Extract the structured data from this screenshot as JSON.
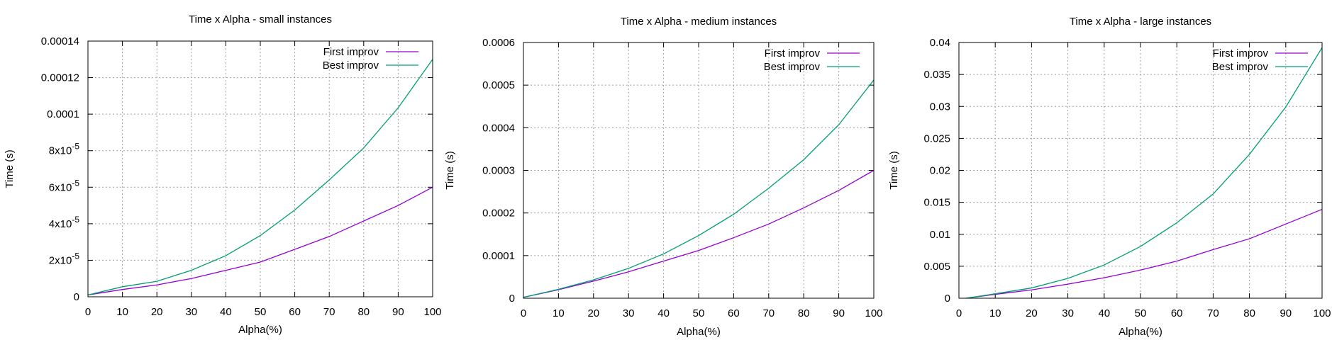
{
  "chart_data": [
    {
      "type": "line",
      "title": "Time x Alpha - small instances",
      "xlabel": "Alpha(%)",
      "ylabel": "Time (s)",
      "xlim": [
        0,
        100
      ],
      "ylim": [
        0,
        0.00014
      ],
      "x_ticks": [
        0,
        10,
        20,
        30,
        40,
        50,
        60,
        70,
        80,
        90,
        100
      ],
      "y_ticks": [
        {
          "value": 0,
          "mantissa": "0",
          "exp": ""
        },
        {
          "value": 2e-05,
          "mantissa": "2x10",
          "exp": "-5"
        },
        {
          "value": 4e-05,
          "mantissa": "4x10",
          "exp": "-5"
        },
        {
          "value": 6e-05,
          "mantissa": "6x10",
          "exp": "-5"
        },
        {
          "value": 8e-05,
          "mantissa": "8x10",
          "exp": "-5"
        },
        {
          "value": 0.0001,
          "mantissa": "0.0001",
          "exp": ""
        },
        {
          "value": 0.00012,
          "mantissa": "0.00012",
          "exp": ""
        },
        {
          "value": 0.00014,
          "mantissa": "0.00014",
          "exp": ""
        }
      ],
      "grid": true,
      "legend_position": "top-right",
      "x": [
        0,
        10,
        20,
        30,
        40,
        50,
        60,
        70,
        80,
        90,
        100
      ],
      "series": [
        {
          "name": "First improv",
          "color": "#9400d3",
          "values": [
            1e-06,
            4e-06,
            6.5e-06,
            1e-05,
            1.45e-05,
            1.9e-05,
            2.6e-05,
            3.3e-05,
            4.15e-05,
            5e-05,
            6e-05
          ]
        },
        {
          "name": "Best improv",
          "color": "#009e73",
          "values": [
            1e-06,
            5.5e-06,
            8.5e-06,
            1.45e-05,
            2.25e-05,
            3.35e-05,
            4.75e-05,
            6.4e-05,
            8.15e-05,
            0.0001035,
            0.00013
          ]
        }
      ]
    },
    {
      "type": "line",
      "title": "Time x Alpha - medium instances",
      "xlabel": "Alpha(%)",
      "ylabel": "Time (s)",
      "xlim": [
        0,
        100
      ],
      "ylim": [
        0,
        0.0006
      ],
      "x_ticks": [
        0,
        10,
        20,
        30,
        40,
        50,
        60,
        70,
        80,
        90,
        100
      ],
      "y_ticks": [
        {
          "value": 0,
          "mantissa": "0",
          "exp": ""
        },
        {
          "value": 0.0001,
          "mantissa": "0.0001",
          "exp": ""
        },
        {
          "value": 0.0002,
          "mantissa": "0.0002",
          "exp": ""
        },
        {
          "value": 0.0003,
          "mantissa": "0.0003",
          "exp": ""
        },
        {
          "value": 0.0004,
          "mantissa": "0.0004",
          "exp": ""
        },
        {
          "value": 0.0005,
          "mantissa": "0.0005",
          "exp": ""
        },
        {
          "value": 0.0006,
          "mantissa": "0.0006",
          "exp": ""
        }
      ],
      "grid": true,
      "legend_position": "top-right",
      "x": [
        0,
        10,
        20,
        30,
        40,
        50,
        60,
        70,
        80,
        90,
        100
      ],
      "series": [
        {
          "name": "First improv",
          "color": "#9400d3",
          "values": [
            2e-06,
            2e-05,
            4e-05,
            6.2e-05,
            8.7e-05,
            0.000112,
            0.000142,
            0.000174,
            0.000212,
            0.000253,
            0.0003
          ]
        },
        {
          "name": "Best improv",
          "color": "#009e73",
          "values": [
            2e-06,
            2.1e-05,
            4.3e-05,
            7e-05,
            0.000104,
            0.000147,
            0.000197,
            0.000258,
            0.000325,
            0.000407,
            0.000512
          ]
        }
      ]
    },
    {
      "type": "line",
      "title": "Time x Alpha - large instances",
      "xlabel": "Alpha(%)",
      "ylabel": "Time (s)",
      "xlim": [
        0,
        100
      ],
      "ylim": [
        0,
        0.04
      ],
      "x_ticks": [
        0,
        10,
        20,
        30,
        40,
        50,
        60,
        70,
        80,
        90,
        100
      ],
      "y_ticks": [
        {
          "value": 0,
          "mantissa": "0",
          "exp": ""
        },
        {
          "value": 0.005,
          "mantissa": "0.005",
          "exp": ""
        },
        {
          "value": 0.01,
          "mantissa": "0.01",
          "exp": ""
        },
        {
          "value": 0.015,
          "mantissa": "0.015",
          "exp": ""
        },
        {
          "value": 0.02,
          "mantissa": "0.02",
          "exp": ""
        },
        {
          "value": 0.025,
          "mantissa": "0.025",
          "exp": ""
        },
        {
          "value": 0.03,
          "mantissa": "0.03",
          "exp": ""
        },
        {
          "value": 0.035,
          "mantissa": "0.035",
          "exp": ""
        },
        {
          "value": 0.04,
          "mantissa": "0.04",
          "exp": ""
        }
      ],
      "grid": true,
      "legend_position": "top-right",
      "x": [
        2,
        10,
        20,
        30,
        40,
        50,
        60,
        70,
        80,
        90,
        100
      ],
      "series": [
        {
          "name": "First improv",
          "color": "#9400d3",
          "values": [
            0.0,
            0.0006,
            0.0013,
            0.0022,
            0.0032,
            0.0044,
            0.0058,
            0.0076,
            0.0093,
            0.0116,
            0.0139
          ]
        },
        {
          "name": "Best improv",
          "color": "#009e73",
          "values": [
            0.0,
            0.0007,
            0.0016,
            0.0031,
            0.0052,
            0.0081,
            0.0118,
            0.0163,
            0.0225,
            0.0299,
            0.0392
          ]
        }
      ]
    }
  ]
}
